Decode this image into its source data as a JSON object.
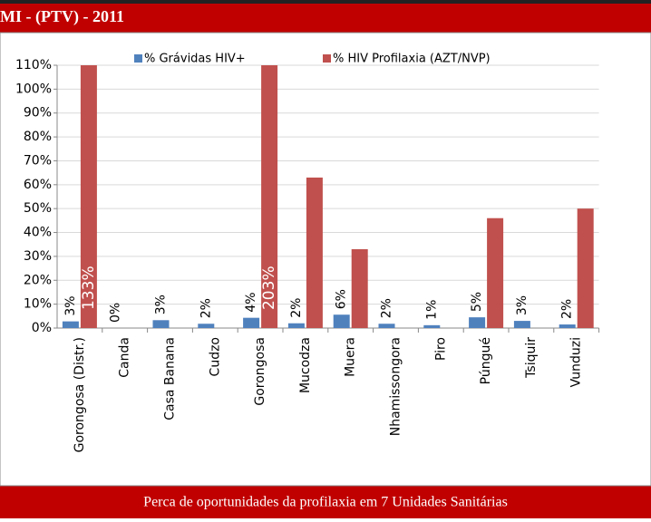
{
  "header": {
    "title": "MI - (PTV)  - 2011"
  },
  "chart_data": {
    "type": "bar",
    "categories": [
      "Gorongosa (Distr.)",
      "Canda",
      "Casa Banana",
      "Cudzo",
      "Gorongosa",
      "Mucodza",
      "Muera",
      "Nhamissongora",
      "Piro",
      "Púngué",
      "Tsiquir",
      "Vunduzi"
    ],
    "series": [
      {
        "name": "% Grávidas HIV+",
        "color": "#4f81bd",
        "values": [
          2.8,
          0,
          3.3,
          1.8,
          4.3,
          2,
          5.6,
          1.8,
          1.2,
          4.5,
          3,
          1.5
        ],
        "value_labels": [
          "3%",
          "0%",
          "3%",
          "2%",
          "4%",
          "2%",
          "6%",
          "2%",
          "1%",
          "5%",
          "3%",
          "2%"
        ]
      },
      {
        "name": "% HIV Profilaxia (AZT/NVP)",
        "color": "#c0504d",
        "values": [
          133,
          0,
          0,
          0,
          203,
          63,
          33,
          0,
          0,
          46,
          0,
          50
        ],
        "value_labels": [
          "133%",
          null,
          null,
          null,
          "203%",
          null,
          null,
          null,
          null,
          null,
          null,
          null
        ]
      }
    ],
    "ylim": [
      0,
      110
    ],
    "yticks": [
      {
        "value": 0,
        "label": "0%"
      },
      {
        "value": 10,
        "label": "10%"
      },
      {
        "value": 20,
        "label": "20%"
      },
      {
        "value": 30,
        "label": "30%"
      },
      {
        "value": 40,
        "label": "40%"
      },
      {
        "value": 50,
        "label": "50%"
      },
      {
        "value": 60,
        "label": "60%"
      },
      {
        "value": 70,
        "label": "70%"
      },
      {
        "value": 80,
        "label": "80%"
      },
      {
        "value": 90,
        "label": "90%"
      },
      {
        "value": 100,
        "label": "100%"
      },
      {
        "value": 110,
        "label": "110%"
      }
    ],
    "grid": true,
    "legend": "top"
  },
  "footer": {
    "text": "Perca de oportunidades da profilaxia em 7 Unidades Sanitárias"
  }
}
